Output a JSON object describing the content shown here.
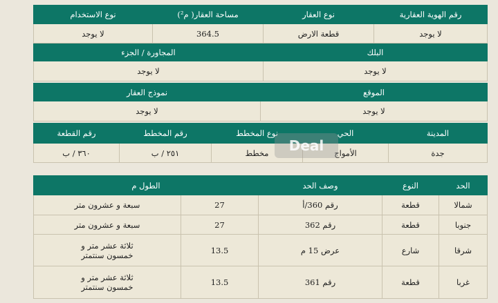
{
  "section1": {
    "headers": [
      "رقم الهوية العقارية",
      "نوع العقار",
      "مساحة العقار( م²)",
      "نوع الاستخدام"
    ],
    "values": [
      "لا يوجد",
      "قطعة الارض",
      "364.5",
      "لا يوجد"
    ]
  },
  "section2": {
    "headers": [
      "البلك",
      "المجاورة / الجزء"
    ],
    "values": [
      "لا يوجد",
      "لا يوجد"
    ]
  },
  "section3": {
    "headers": [
      "الموقع",
      "نموذج العقار"
    ],
    "values": [
      "لا يوجد",
      "لا يوجد"
    ]
  },
  "section4": {
    "headers": [
      "المدينة",
      "الحي",
      "نوع المخطط",
      "رقم المخطط",
      "رقم القطعة"
    ],
    "values": [
      "جدة",
      "الأمواج",
      "مخطط",
      "٢٥١ / ب",
      "٣٦٠ / ب"
    ]
  },
  "boundaries": {
    "headers": {
      "side": "الحد",
      "type": "النوع",
      "description": "وصف الحد",
      "length": "الطول م"
    },
    "rows": [
      {
        "side": "شمالا",
        "type": "قطعة",
        "description": "رقم 360/أ",
        "length": "27",
        "length_text": "سبعة و عشرون متر"
      },
      {
        "side": "جنوبا",
        "type": "قطعة",
        "description": "رقم 362",
        "length": "27",
        "length_text": "سبعة و عشرون متر"
      },
      {
        "side": "شرقا",
        "type": "شارع",
        "description": "عرض 15 م",
        "length": "13.5",
        "length_text": "ثلاثة عشر متر و خمسون سنتمتر"
      },
      {
        "side": "غربا",
        "type": "قطعة",
        "description": "رقم 361",
        "length": "13.5",
        "length_text": "ثلاثة عشر متر و خمسون سنتمتر"
      }
    ]
  },
  "watermark": "Deal"
}
